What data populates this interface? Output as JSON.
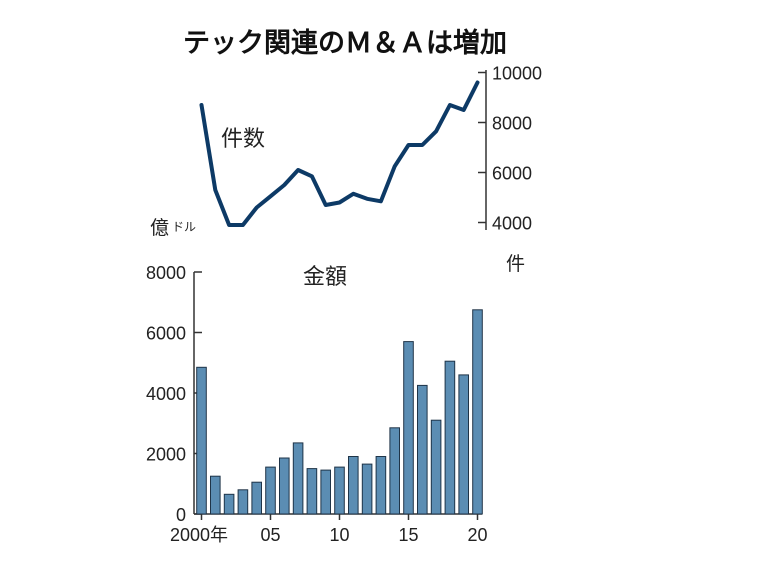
{
  "title": "テック関連のＭ＆Ａは増加",
  "chart_data": [
    {
      "type": "line",
      "name": "件数",
      "unit": "件",
      "x": [
        2000,
        2001,
        2002,
        2003,
        2004,
        2005,
        2006,
        2007,
        2008,
        2009,
        2010,
        2011,
        2012,
        2013,
        2014,
        2015,
        2016,
        2017,
        2018,
        2019,
        2020
      ],
      "values": [
        8700,
        5300,
        3900,
        3900,
        4600,
        5050,
        5500,
        6100,
        5850,
        4700,
        4800,
        5150,
        4950,
        4850,
        6250,
        7100,
        7100,
        7650,
        8700,
        8500,
        9600
      ],
      "ylim": [
        3700,
        10100
      ],
      "yticks": [
        4000,
        6000,
        8000,
        10000
      ],
      "ytick_labels": [
        "4000",
        "6000",
        "8000",
        "10000"
      ],
      "color": "#0d3a66",
      "axis_side": "right"
    },
    {
      "type": "bar",
      "name": "金額",
      "unit_main": "億",
      "unit_sub": "ドル",
      "x": [
        2000,
        2001,
        2002,
        2003,
        2004,
        2005,
        2006,
        2007,
        2008,
        2009,
        2010,
        2011,
        2012,
        2013,
        2014,
        2015,
        2016,
        2017,
        2018,
        2019,
        2020
      ],
      "values": [
        4850,
        1250,
        650,
        800,
        1050,
        1550,
        1850,
        2350,
        1500,
        1450,
        1550,
        1900,
        1650,
        1900,
        2850,
        5700,
        4250,
        3100,
        5050,
        4600,
        6750
      ],
      "ylim": [
        0,
        8000
      ],
      "yticks": [
        0,
        2000,
        4000,
        6000,
        8000
      ],
      "ytick_labels": [
        "0",
        "2000",
        "4000",
        "6000",
        "8000"
      ],
      "color": "#5b8db3",
      "axis_side": "left"
    }
  ],
  "x_tick_labels": [
    {
      "year": 2000,
      "label": "2000年"
    },
    {
      "year": 2005,
      "label": "05"
    },
    {
      "year": 2010,
      "label": "10"
    },
    {
      "year": 2015,
      "label": "15"
    },
    {
      "year": 2020,
      "label": "20"
    }
  ]
}
